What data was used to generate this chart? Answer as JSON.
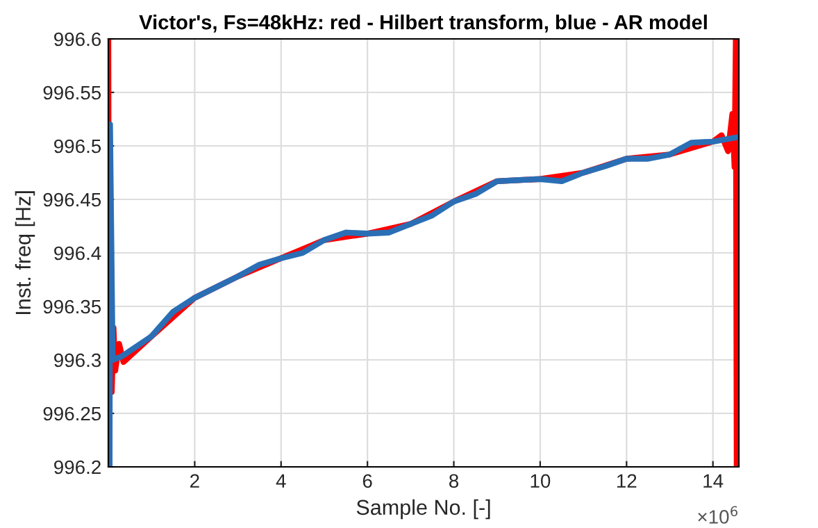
{
  "chart_data": {
    "type": "line",
    "title": "Victor's, Fs=48kHz: red - Hilbert transform, blue - AR model",
    "xlabel": "Sample No. [-]",
    "ylabel": "Inst. freq [Hz]",
    "xlim": [
      0,
      14.6
    ],
    "ylim": [
      996.2,
      996.6
    ],
    "xticks": [
      2,
      4,
      6,
      8,
      10,
      12,
      14
    ],
    "yticks": [
      996.2,
      996.25,
      996.3,
      996.35,
      996.4,
      996.45,
      996.5,
      996.55,
      996.6
    ],
    "annotations": [
      "×10$^{6}$"
    ],
    "grid": true,
    "line_style": "solid",
    "marker": "none",
    "series": [
      {
        "color": "#ff0000",
        "x": [
          0,
          0.02,
          0.05,
          0.08,
          0.12,
          0.16,
          0.25,
          0.35,
          1,
          2,
          3,
          4,
          5,
          6,
          7,
          8,
          9,
          10,
          11,
          12,
          13,
          14,
          14.2,
          14.35,
          14.45,
          14.5,
          14.53,
          14.55
        ],
        "values": [
          996.6,
          996.2,
          996.4,
          996.27,
          996.33,
          996.29,
          996.315,
          996.298,
          996.322,
          996.358,
          996.378,
          996.395,
          996.412,
          996.418,
          996.427,
          996.448,
          996.467,
          996.469,
          996.475,
          996.488,
          996.492,
          996.504,
          996.51,
          996.495,
          996.53,
          996.48,
          996.6,
          996.2
        ]
      },
      {
        "color": "#2a6fb5",
        "x": [
          0.03,
          0.04,
          0.1,
          0.3,
          1,
          1.5,
          2,
          2.5,
          3,
          3.5,
          4,
          4.5,
          5,
          5.5,
          6,
          6.5,
          7,
          7.5,
          8,
          8.5,
          9,
          9.5,
          10,
          10.5,
          11,
          11.5,
          12,
          12.5,
          13,
          13.5,
          14,
          14.55
        ],
        "values": [
          996.2,
          996.52,
          996.3,
          996.303,
          996.322,
          996.345,
          996.358,
          996.368,
          996.378,
          996.389,
          996.395,
          996.4,
          996.412,
          996.419,
          996.418,
          996.419,
          996.427,
          996.435,
          996.448,
          996.455,
          996.467,
          996.468,
          996.469,
          996.467,
          996.475,
          996.481,
          996.488,
          996.488,
          996.492,
          996.503,
          996.504,
          996.508
        ]
      }
    ]
  }
}
